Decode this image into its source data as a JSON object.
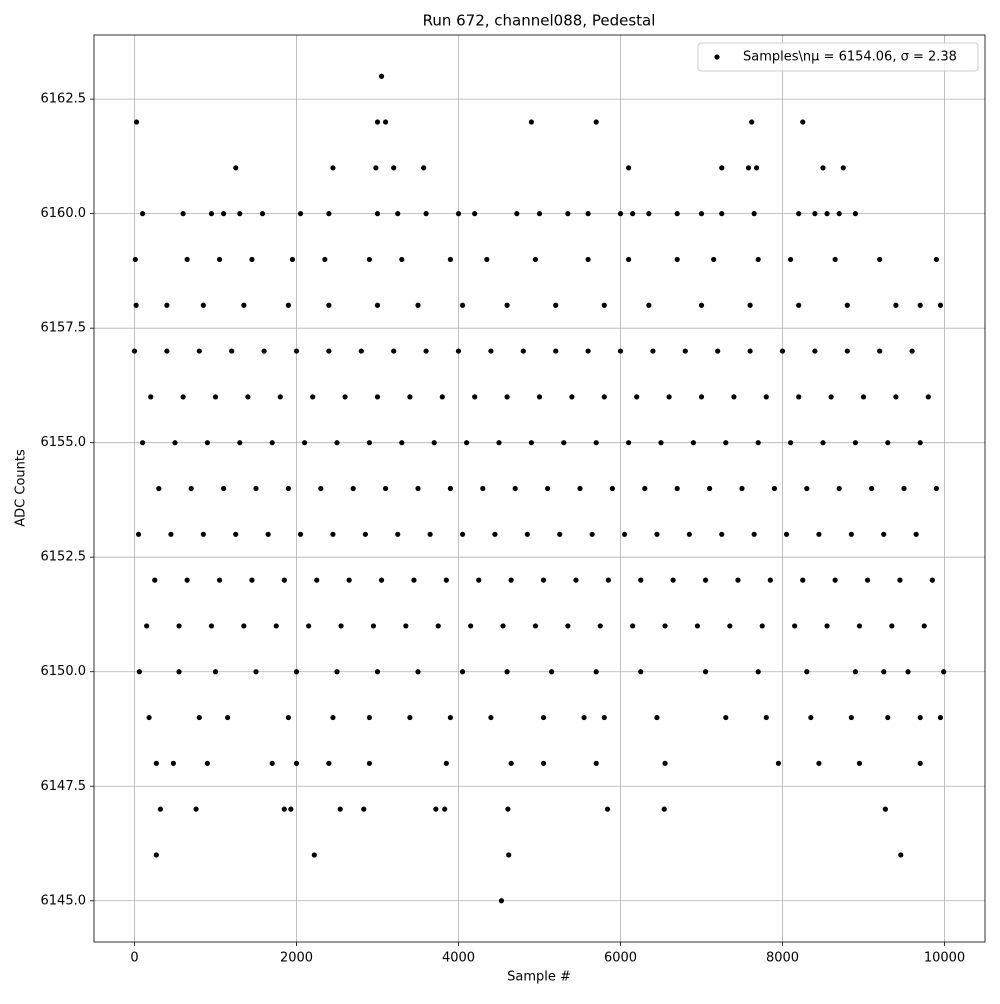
{
  "chart_data": {
    "type": "scatter",
    "title": "Run 672, channel088, Pedestal",
    "xlabel": "Sample #",
    "ylabel": "ADC Counts",
    "xlim": [
      -500,
      10500
    ],
    "ylim": [
      6144.1,
      6163.9
    ],
    "xticks": [
      0,
      2000,
      4000,
      6000,
      8000,
      10000
    ],
    "yticks": [
      {
        "value": 6145,
        "label": "6145.0"
      },
      {
        "value": 6147.5,
        "label": "6147.5"
      },
      {
        "value": 6150,
        "label": "6150.0"
      },
      {
        "value": 6152.5,
        "label": "6152.5"
      },
      {
        "value": 6155,
        "label": "6155.0"
      },
      {
        "value": 6157.5,
        "label": "6157.5"
      },
      {
        "value": 6160,
        "label": "6160.0"
      },
      {
        "value": 6162.5,
        "label": "6162.5"
      }
    ],
    "grid": true,
    "legend": "upper right",
    "x": [
      3050,
      25,
      3000,
      3100,
      4900,
      5700,
      7620,
      8250,
      1250,
      2450,
      2980,
      3200,
      3570,
      6100,
      7250,
      7580,
      7680,
      8500,
      8750,
      100,
      600,
      950,
      1100,
      1300,
      1580,
      2050,
      2400,
      3000,
      3250,
      3600,
      4000,
      4200,
      4720,
      5000,
      5350,
      5600,
      6000,
      6150,
      6350,
      6700,
      7000,
      7250,
      7650,
      8200,
      8400,
      8550,
      8700,
      8900,
      10,
      650,
      1050,
      1450,
      1950,
      2350,
      2900,
      3300,
      3900,
      4350,
      4950,
      5600,
      6100,
      6700,
      7150,
      7700,
      8100,
      8650,
      9200,
      9900,
      20,
      400,
      850,
      1350,
      1900,
      2400,
      3000,
      3500,
      4050,
      4600,
      5200,
      5800,
      6350,
      7000,
      7600,
      8200,
      8800,
      9400,
      9700,
      9950,
      0,
      400,
      800,
      1200,
      1600,
      2000,
      2400,
      2800,
      3200,
      3600,
      4000,
      4400,
      4800,
      5200,
      5600,
      6000,
      6400,
      6800,
      7200,
      7600,
      8000,
      8400,
      8800,
      9200,
      9600,
      200,
      600,
      1000,
      1400,
      1800,
      2200,
      2600,
      3000,
      3400,
      3800,
      4200,
      4600,
      5000,
      5400,
      5800,
      6200,
      6600,
      7000,
      7400,
      7800,
      8200,
      8600,
      9000,
      9400,
      9800,
      100,
      500,
      900,
      1300,
      1700,
      2100,
      2500,
      2900,
      3300,
      3700,
      4100,
      4500,
      4900,
      5300,
      5700,
      6100,
      6500,
      6900,
      7300,
      7700,
      8100,
      8500,
      8900,
      9300,
      9700,
      300,
      700,
      1100,
      1500,
      1900,
      2300,
      2700,
      3100,
      3500,
      3900,
      4300,
      4700,
      5100,
      5500,
      5900,
      6300,
      6700,
      7100,
      7500,
      7900,
      8300,
      8700,
      9100,
      9500,
      9900,
      50,
      450,
      850,
      1250,
      1650,
      2050,
      2450,
      2850,
      3250,
      3650,
      4050,
      4450,
      4850,
      5250,
      5650,
      6050,
      6450,
      6850,
      7250,
      7650,
      8050,
      8450,
      8850,
      9250,
      9650,
      250,
      650,
      1050,
      1450,
      1850,
      2250,
      2650,
      3050,
      3450,
      3850,
      4250,
      4650,
      5050,
      5450,
      5850,
      6250,
      6650,
      7050,
      7450,
      7850,
      8250,
      8650,
      9050,
      9450,
      9850,
      150,
      550,
      950,
      1350,
      1750,
      2150,
      2550,
      2950,
      3350,
      3750,
      4150,
      4550,
      4950,
      5350,
      5750,
      6150,
      6550,
      6950,
      7350,
      7750,
      8150,
      8550,
      8950,
      9350,
      9750,
      60,
      550,
      1000,
      1500,
      2000,
      2500,
      3000,
      3500,
      4050,
      4600,
      5150,
      5700,
      6250,
      7050,
      7700,
      8300,
      8900,
      9250,
      9550,
      9990,
      180,
      800,
      1150,
      1900,
      2450,
      2900,
      3400,
      3900,
      4400,
      5050,
      5550,
      5800,
      6450,
      7300,
      7800,
      8350,
      8850,
      9300,
      9700,
      9950,
      270,
      480,
      900,
      1700,
      2000,
      2400,
      2900,
      3850,
      4650,
      5050,
      5700,
      6550,
      7950,
      8450,
      8950,
      9700,
      320,
      760,
      1850,
      1930,
      2540,
      2830,
      3720,
      3830,
      4610,
      5840,
      6540,
      9270,
      270,
      2220,
      4620,
      9460,
      4530
    ],
    "series": [
      {
        "name": "Samples\\nμ = 6154.06, σ = 2.38",
        "color": "#000000",
        "values": [
          6163,
          6162,
          6162,
          6162,
          6162,
          6162,
          6162,
          6162,
          6161,
          6161,
          6161,
          6161,
          6161,
          6161,
          6161,
          6161,
          6161,
          6161,
          6161,
          6160,
          6160,
          6160,
          6160,
          6160,
          6160,
          6160,
          6160,
          6160,
          6160,
          6160,
          6160,
          6160,
          6160,
          6160,
          6160,
          6160,
          6160,
          6160,
          6160,
          6160,
          6160,
          6160,
          6160,
          6160,
          6160,
          6160,
          6160,
          6160,
          6159,
          6159,
          6159,
          6159,
          6159,
          6159,
          6159,
          6159,
          6159,
          6159,
          6159,
          6159,
          6159,
          6159,
          6159,
          6159,
          6159,
          6159,
          6159,
          6159,
          6158,
          6158,
          6158,
          6158,
          6158,
          6158,
          6158,
          6158,
          6158,
          6158,
          6158,
          6158,
          6158,
          6158,
          6158,
          6158,
          6158,
          6158,
          6158,
          6158,
          6157,
          6157,
          6157,
          6157,
          6157,
          6157,
          6157,
          6157,
          6157,
          6157,
          6157,
          6157,
          6157,
          6157,
          6157,
          6157,
          6157,
          6157,
          6157,
          6157,
          6157,
          6157,
          6157,
          6157,
          6157,
          6156,
          6156,
          6156,
          6156,
          6156,
          6156,
          6156,
          6156,
          6156,
          6156,
          6156,
          6156,
          6156,
          6156,
          6156,
          6156,
          6156,
          6156,
          6156,
          6156,
          6156,
          6156,
          6156,
          6156,
          6156,
          6155,
          6155,
          6155,
          6155,
          6155,
          6155,
          6155,
          6155,
          6155,
          6155,
          6155,
          6155,
          6155,
          6155,
          6155,
          6155,
          6155,
          6155,
          6155,
          6155,
          6155,
          6155,
          6155,
          6155,
          6155,
          6154,
          6154,
          6154,
          6154,
          6154,
          6154,
          6154,
          6154,
          6154,
          6154,
          6154,
          6154,
          6154,
          6154,
          6154,
          6154,
          6154,
          6154,
          6154,
          6154,
          6154,
          6154,
          6154,
          6154,
          6154,
          6153,
          6153,
          6153,
          6153,
          6153,
          6153,
          6153,
          6153,
          6153,
          6153,
          6153,
          6153,
          6153,
          6153,
          6153,
          6153,
          6153,
          6153,
          6153,
          6153,
          6153,
          6153,
          6153,
          6153,
          6153,
          6152,
          6152,
          6152,
          6152,
          6152,
          6152,
          6152,
          6152,
          6152,
          6152,
          6152,
          6152,
          6152,
          6152,
          6152,
          6152,
          6152,
          6152,
          6152,
          6152,
          6152,
          6152,
          6152,
          6152,
          6152,
          6151,
          6151,
          6151,
          6151,
          6151,
          6151,
          6151,
          6151,
          6151,
          6151,
          6151,
          6151,
          6151,
          6151,
          6151,
          6151,
          6151,
          6151,
          6151,
          6151,
          6151,
          6151,
          6151,
          6151,
          6151,
          6150,
          6150,
          6150,
          6150,
          6150,
          6150,
          6150,
          6150,
          6150,
          6150,
          6150,
          6150,
          6150,
          6150,
          6150,
          6150,
          6150,
          6150,
          6150,
          6150,
          6149,
          6149,
          6149,
          6149,
          6149,
          6149,
          6149,
          6149,
          6149,
          6149,
          6149,
          6149,
          6149,
          6149,
          6149,
          6149,
          6149,
          6149,
          6149,
          6149,
          6148,
          6148,
          6148,
          6148,
          6148,
          6148,
          6148,
          6148,
          6148,
          6148,
          6148,
          6148,
          6148,
          6148,
          6148,
          6148,
          6147,
          6147,
          6147,
          6147,
          6147,
          6147,
          6147,
          6147,
          6147,
          6147,
          6147,
          6147,
          6146,
          6146,
          6146,
          6146,
          6145
        ]
      }
    ]
  }
}
